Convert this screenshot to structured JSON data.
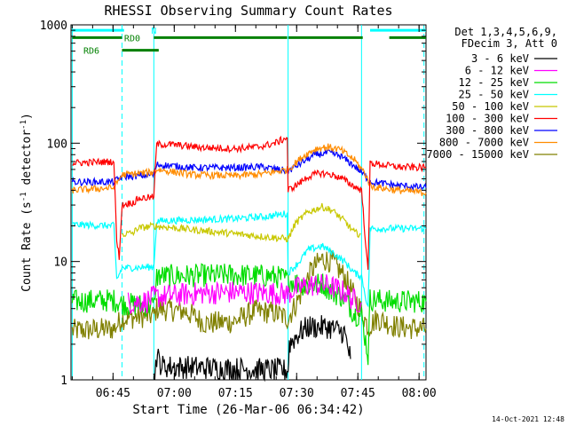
{
  "chart_data": {
    "type": "line",
    "title": "RHESSI Observing Summary Count Rates",
    "xlabel": "Start Time (26-Mar-06 06:34:42)",
    "ylabel_main": "Count Rate (s",
    "ylabel_sup1": "-1",
    "ylabel_mid": " detector",
    "ylabel_sup2": "-1",
    "ylabel_end": ")",
    "x_unit": "minutes since 06:34:42",
    "xlim": [
      0,
      87
    ],
    "ylim": [
      1,
      1000
    ],
    "yscale": "log",
    "x_ticks": [
      {
        "label": "06:45",
        "value": 10.3
      },
      {
        "label": "07:00",
        "value": 25.3
      },
      {
        "label": "07:15",
        "value": 40.3
      },
      {
        "label": "07:30",
        "value": 55.3
      },
      {
        "label": "07:45",
        "value": 70.3
      },
      {
        "label": "08:00",
        "value": 85.3
      }
    ],
    "y_ticks": [
      {
        "label": "1",
        "value": 1
      },
      {
        "label": "10",
        "value": 10
      },
      {
        "label": "100",
        "value": 100
      },
      {
        "label": "1000",
        "value": 1000
      }
    ],
    "legend_header": [
      "Det 1,3,4,5,6,9,",
      "FDecim 3, Att 0"
    ],
    "legend_position": "right",
    "series": [
      {
        "name": "3 - 6 keV",
        "color": "#000000",
        "points": [
          [
            20.3,
            1.0
          ],
          [
            21.0,
            1.6
          ],
          [
            22.3,
            1.3
          ],
          [
            53.2,
            1.2
          ],
          [
            53.5,
            2.0
          ],
          [
            56.0,
            2.5
          ],
          [
            58.0,
            2.8
          ],
          [
            63.0,
            2.8
          ],
          [
            67.0,
            2.5
          ],
          [
            68.5,
            1.5
          ]
        ]
      },
      {
        "name": "6 - 12 keV",
        "color": "#ff00ff",
        "points": [
          [
            14.0,
            4.5
          ],
          [
            18.3,
            4.6
          ],
          [
            20.3,
            5.0
          ],
          [
            26.0,
            5.2
          ],
          [
            32.0,
            5.4
          ],
          [
            40.0,
            5.5
          ],
          [
            50.0,
            5.4
          ],
          [
            53.2,
            5.3
          ],
          [
            54.5,
            5.8
          ],
          [
            58.0,
            6.3
          ],
          [
            63.0,
            6.3
          ],
          [
            67.0,
            5.5
          ],
          [
            69.0,
            4.8
          ],
          [
            71.2,
            4.5
          ]
        ]
      },
      {
        "name": "12 - 25 keV",
        "color": "#00dd00",
        "points": [
          [
            0.3,
            4.6
          ],
          [
            10.5,
            4.7
          ],
          [
            12.5,
            4.4
          ],
          [
            20.3,
            4.2
          ],
          [
            21.0,
            7.5
          ],
          [
            30.0,
            7.6
          ],
          [
            40.0,
            7.7
          ],
          [
            50.0,
            7.5
          ],
          [
            53.2,
            7.0
          ],
          [
            56.0,
            6.5
          ],
          [
            59.0,
            6.2
          ],
          [
            61.5,
            6.6
          ],
          [
            64.0,
            5.5
          ],
          [
            67.0,
            5.0
          ],
          [
            69.5,
            3.6
          ],
          [
            71.2,
            3.5
          ],
          [
            72.8,
            1.6
          ],
          [
            73.3,
            4.8
          ],
          [
            78.0,
            4.6
          ],
          [
            87.0,
            4.6
          ]
        ]
      },
      {
        "name": "25 - 50 keV",
        "color": "#00ffff",
        "points": [
          [
            0.3,
            20.5
          ],
          [
            10.5,
            20.0
          ],
          [
            11.2,
            7.0
          ],
          [
            12.5,
            8.8
          ],
          [
            20.3,
            9.0
          ],
          [
            21.0,
            22.0
          ],
          [
            30.0,
            22.5
          ],
          [
            40.0,
            23.0
          ],
          [
            48.0,
            24.0
          ],
          [
            53.0,
            25.5
          ],
          [
            53.2,
            8.0
          ],
          [
            56.0,
            10.0
          ],
          [
            58.0,
            12.5
          ],
          [
            61.5,
            13.5
          ],
          [
            64.0,
            12.0
          ],
          [
            67.0,
            10.0
          ],
          [
            69.5,
            8.0
          ],
          [
            71.2,
            7.5
          ],
          [
            72.8,
            4.0
          ],
          [
            73.3,
            19.0
          ],
          [
            80.0,
            19.0
          ],
          [
            87.0,
            19.0
          ]
        ]
      },
      {
        "name": "50 - 100 keV",
        "color": "#c8c800",
        "points": [
          [
            12.5,
            17.0
          ],
          [
            15.5,
            17.5
          ],
          [
            16.0,
            19.0
          ],
          [
            20.3,
            20.0
          ],
          [
            53.2,
            15.5
          ],
          [
            55.0,
            21.0
          ],
          [
            58.0,
            26.0
          ],
          [
            61.5,
            29.0
          ],
          [
            64.0,
            27.0
          ],
          [
            67.0,
            22.0
          ],
          [
            69.5,
            17.5
          ],
          [
            71.0,
            17.0
          ]
        ]
      },
      {
        "name": "100 - 300 keV",
        "color": "#ff0000",
        "points": [
          [
            0.3,
            68.0
          ],
          [
            10.5,
            70.0
          ],
          [
            11.2,
            15.0
          ],
          [
            11.8,
            11.0
          ],
          [
            12.5,
            30.0
          ],
          [
            15.8,
            32.0
          ],
          [
            16.3,
            34.0
          ],
          [
            20.3,
            35.0
          ],
          [
            21.0,
            98.0
          ],
          [
            25.0,
            97.0
          ],
          [
            32.0,
            92.0
          ],
          [
            40.0,
            90.0
          ],
          [
            46.0,
            93.0
          ],
          [
            50.0,
            100.0
          ],
          [
            53.0,
            112.0
          ],
          [
            53.2,
            40.0
          ],
          [
            56.0,
            46.0
          ],
          [
            58.0,
            52.0
          ],
          [
            61.0,
            56.0
          ],
          [
            64.0,
            54.0
          ],
          [
            66.5,
            50.0
          ],
          [
            69.5,
            43.0
          ],
          [
            71.2,
            40.0
          ],
          [
            72.8,
            8.0
          ],
          [
            73.3,
            68.0
          ],
          [
            80.0,
            63.0
          ],
          [
            87.0,
            62.0
          ]
        ]
      },
      {
        "name": "300 - 800 keV",
        "color": "#0000ff",
        "points": [
          [
            0.3,
            47.0
          ],
          [
            10.5,
            47.0
          ],
          [
            12.5,
            52.0
          ],
          [
            20.3,
            54.0
          ],
          [
            21.0,
            66.0
          ],
          [
            30.0,
            62.0
          ],
          [
            40.0,
            62.0
          ],
          [
            47.0,
            63.0
          ],
          [
            53.2,
            58.0
          ],
          [
            57.0,
            70.0
          ],
          [
            60.0,
            80.0
          ],
          [
            63.0,
            83.0
          ],
          [
            66.0,
            78.0
          ],
          [
            69.5,
            64.0
          ],
          [
            72.0,
            53.0
          ],
          [
            73.5,
            47.0
          ],
          [
            80.0,
            44.0
          ],
          [
            87.0,
            42.0
          ]
        ]
      },
      {
        "name": "800 - 7000 keV",
        "color": "#ff8c00",
        "points": [
          [
            0.3,
            40.0
          ],
          [
            10.5,
            42.0
          ],
          [
            12.5,
            54.0
          ],
          [
            20.3,
            57.0
          ],
          [
            21.0,
            60.0
          ],
          [
            30.0,
            54.0
          ],
          [
            40.0,
            53.0
          ],
          [
            47.0,
            55.0
          ],
          [
            53.2,
            60.0
          ],
          [
            57.0,
            78.0
          ],
          [
            60.0,
            90.0
          ],
          [
            63.0,
            93.0
          ],
          [
            66.0,
            88.0
          ],
          [
            69.5,
            72.0
          ],
          [
            72.0,
            56.0
          ],
          [
            73.5,
            43.0
          ],
          [
            80.0,
            40.0
          ],
          [
            87.0,
            38.0
          ]
        ]
      },
      {
        "name": "7000 - 15000 keV",
        "color": "#808000",
        "points": [
          [
            0.3,
            2.6
          ],
          [
            10.5,
            2.7
          ],
          [
            12.5,
            3.3
          ],
          [
            20.3,
            3.5
          ],
          [
            21.0,
            4.0
          ],
          [
            28.0,
            3.8
          ],
          [
            33.0,
            3.0
          ],
          [
            40.0,
            3.1
          ],
          [
            45.0,
            3.8
          ],
          [
            50.0,
            3.7
          ],
          [
            53.2,
            3.3
          ],
          [
            56.0,
            5.0
          ],
          [
            59.0,
            8.5
          ],
          [
            61.5,
            10.5
          ],
          [
            64.0,
            10.0
          ],
          [
            67.0,
            7.5
          ],
          [
            69.5,
            5.0
          ],
          [
            71.2,
            3.8
          ],
          [
            72.8,
            2.8
          ],
          [
            75.0,
            3.3
          ],
          [
            80.0,
            2.8
          ],
          [
            87.0,
            2.7
          ]
        ]
      }
    ],
    "flags": [
      {
        "label": "N",
        "color": "#00ffff",
        "value": 900,
        "label_at": 20.3,
        "segments": [
          [
            0.3,
            13.0
          ],
          [
            73.3,
            87.0
          ]
        ]
      },
      {
        "label": "RD0",
        "color": "#008000",
        "value": 780,
        "label_at": 15.0,
        "segments": [
          [
            0.3,
            12.5
          ],
          [
            20.3,
            53.0
          ],
          [
            53.3,
            71.5
          ],
          [
            78.0,
            87.0
          ]
        ]
      },
      {
        "label": "RD6",
        "color": "#008000",
        "value": 610,
        "label_at": 5.0,
        "segments": [
          [
            12.5,
            21.5
          ]
        ]
      }
    ],
    "vlines": [
      {
        "value": 0.3,
        "style": "solid"
      },
      {
        "value": 20.3,
        "style": "solid"
      },
      {
        "value": 53.2,
        "style": "solid"
      },
      {
        "value": 71.2,
        "style": "solid"
      },
      {
        "value": 12.5,
        "style": "dashed"
      },
      {
        "value": 86.5,
        "style": "dashed"
      }
    ],
    "vline_color": "#00ffff"
  },
  "footer": {
    "timestamp": "14-Oct-2021 12:48"
  }
}
